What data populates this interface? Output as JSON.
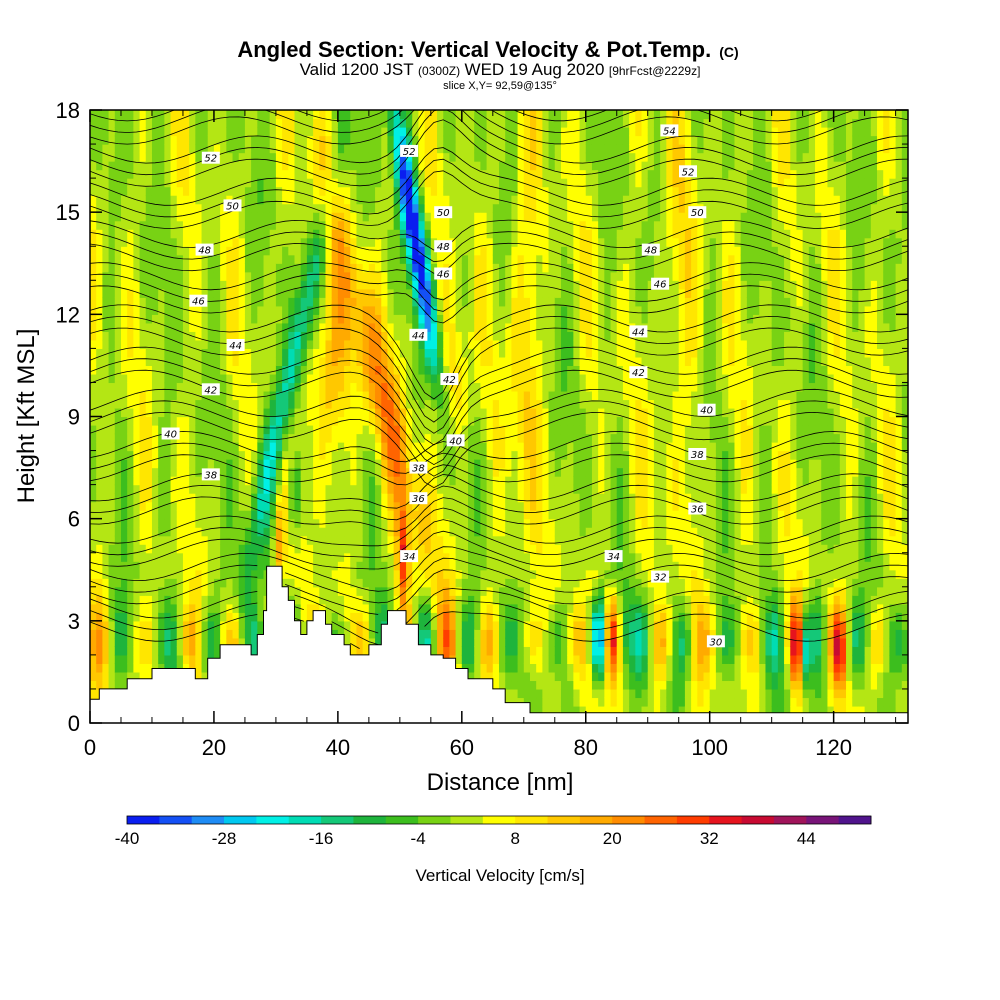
{
  "chart_data": {
    "type": "heatmap",
    "title": "Angled Section: Vertical Velocity & Pot.Temp.",
    "title_suffix": "(C)",
    "subtitle_valid": "Valid 1200 JST",
    "subtitle_z": "(0300Z)",
    "subtitle_date": "WED 19 Aug 2020",
    "subtitle_fcst": "[9hrFcst@2229z]",
    "slice_label": "slice X,Y= 92,59@135°",
    "xlabel": "Distance [nm]",
    "ylabel": "Height [Kft MSL]",
    "xlim": [
      0,
      132
    ],
    "ylim": [
      0,
      18
    ],
    "x_ticks": [
      0,
      20,
      40,
      60,
      80,
      100,
      120
    ],
    "y_ticks": [
      0,
      3,
      6,
      9,
      12,
      15,
      18
    ],
    "colorbar": {
      "label": "Vertical Velocity [cm/s]",
      "range": [
        -40,
        52
      ],
      "tick_values": [
        -40,
        -28,
        -16,
        -4,
        8,
        20,
        32,
        44
      ],
      "colors": [
        "#0a1ef0",
        "#1450f5",
        "#1e8cf5",
        "#00c8f0",
        "#00f0e6",
        "#00dcb4",
        "#14c878",
        "#1eb43c",
        "#3cbe1e",
        "#78d214",
        "#b4e614",
        "#ffff00",
        "#ffe600",
        "#ffc800",
        "#ffaa00",
        "#ff8c00",
        "#ff6400",
        "#ff3c00",
        "#e6141e",
        "#c80a32",
        "#a0145a",
        "#781478",
        "#50148c"
      ]
    },
    "terrain_profile": [
      [
        0,
        0.7
      ],
      [
        1.5,
        0.7
      ],
      [
        1.5,
        1
      ],
      [
        6,
        1
      ],
      [
        6,
        1.3
      ],
      [
        10,
        1.3
      ],
      [
        10,
        1.6
      ],
      [
        17,
        1.6
      ],
      [
        17,
        1.3
      ],
      [
        19,
        1.3
      ],
      [
        19,
        1.9
      ],
      [
        21,
        1.9
      ],
      [
        21,
        2.3
      ],
      [
        26,
        2.3
      ],
      [
        26,
        2
      ],
      [
        27,
        2
      ],
      [
        27,
        2.6
      ],
      [
        28,
        2.6
      ],
      [
        28,
        3.3
      ],
      [
        28.5,
        3.3
      ],
      [
        28.5,
        4.6
      ],
      [
        31,
        4.6
      ],
      [
        31,
        4
      ],
      [
        32,
        4
      ],
      [
        32,
        3.6
      ],
      [
        33,
        3.6
      ],
      [
        33,
        3
      ],
      [
        34,
        3
      ],
      [
        34,
        2.6
      ],
      [
        35,
        2.6
      ],
      [
        35,
        3
      ],
      [
        36,
        3
      ],
      [
        36,
        3.3
      ],
      [
        38,
        3.3
      ],
      [
        38,
        2.9
      ],
      [
        39,
        2.9
      ],
      [
        39,
        2.6
      ],
      [
        41,
        2.6
      ],
      [
        41,
        2.3
      ],
      [
        42,
        2.3
      ],
      [
        42,
        2
      ],
      [
        45,
        2
      ],
      [
        45,
        2.3
      ],
      [
        47,
        2.3
      ],
      [
        47,
        2.9
      ],
      [
        48,
        2.9
      ],
      [
        48,
        3.3
      ],
      [
        51,
        3.3
      ],
      [
        51,
        2.9
      ],
      [
        53,
        2.9
      ],
      [
        53,
        2.3
      ],
      [
        55,
        2.3
      ],
      [
        55,
        2
      ],
      [
        57,
        2
      ],
      [
        57,
        1.9
      ],
      [
        59,
        1.9
      ],
      [
        59,
        1.6
      ],
      [
        61,
        1.6
      ],
      [
        61,
        1.3
      ],
      [
        65,
        1.3
      ],
      [
        65,
        1
      ],
      [
        67,
        1
      ],
      [
        67,
        0.6
      ],
      [
        71,
        0.6
      ],
      [
        71,
        0.3
      ],
      [
        132,
        0.3
      ]
    ],
    "contour_levels": [
      30,
      32,
      34,
      36,
      38,
      40,
      42,
      44,
      46,
      48,
      50,
      52,
      54
    ],
    "contour_labels": [
      {
        "text": "52",
        "x": 19.5,
        "y": 16.6
      },
      {
        "text": "50",
        "x": 23,
        "y": 15.2
      },
      {
        "text": "48",
        "x": 18.5,
        "y": 13.9
      },
      {
        "text": "46",
        "x": 17.5,
        "y": 12.4
      },
      {
        "text": "44",
        "x": 23.5,
        "y": 11.1
      },
      {
        "text": "42",
        "x": 19.5,
        "y": 9.8
      },
      {
        "text": "40",
        "x": 13,
        "y": 8.5
      },
      {
        "text": "38",
        "x": 19.5,
        "y": 7.3
      },
      {
        "text": "52",
        "x": 51.5,
        "y": 16.8
      },
      {
        "text": "50",
        "x": 57,
        "y": 15
      },
      {
        "text": "48",
        "x": 57,
        "y": 14
      },
      {
        "text": "46",
        "x": 57,
        "y": 13.2
      },
      {
        "text": "44",
        "x": 53,
        "y": 11.4
      },
      {
        "text": "42",
        "x": 58,
        "y": 10.1
      },
      {
        "text": "40",
        "x": 59,
        "y": 8.3
      },
      {
        "text": "38",
        "x": 53,
        "y": 7.5
      },
      {
        "text": "36",
        "x": 53,
        "y": 6.6
      },
      {
        "text": "34",
        "x": 51.5,
        "y": 4.9
      },
      {
        "text": "54",
        "x": 93.5,
        "y": 17.4
      },
      {
        "text": "52",
        "x": 96.5,
        "y": 16.2
      },
      {
        "text": "50",
        "x": 98,
        "y": 15
      },
      {
        "text": "48",
        "x": 90.5,
        "y": 13.9
      },
      {
        "text": "46",
        "x": 92,
        "y": 12.9
      },
      {
        "text": "44",
        "x": 88.5,
        "y": 11.5
      },
      {
        "text": "42",
        "x": 88.5,
        "y": 10.3
      },
      {
        "text": "40",
        "x": 99.5,
        "y": 9.2
      },
      {
        "text": "38",
        "x": 98,
        "y": 7.9
      },
      {
        "text": "36",
        "x": 98,
        "y": 6.3
      },
      {
        "text": "34",
        "x": 84.5,
        "y": 4.9
      },
      {
        "text": "32",
        "x": 92,
        "y": 4.3
      },
      {
        "text": "30",
        "x": 101,
        "y": 2.4
      }
    ]
  }
}
